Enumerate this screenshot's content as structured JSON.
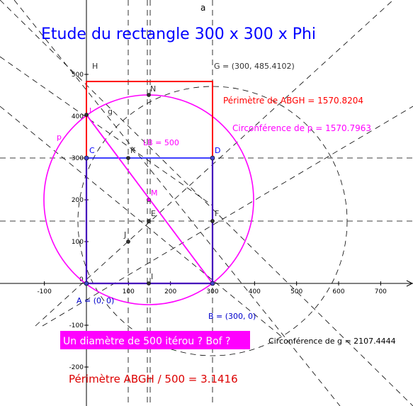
{
  "title": "Etude du rectangle 300 x 300 x Phi",
  "line_label_a": "a",
  "axes": {
    "x_ticks": [
      -100,
      100,
      200,
      300,
      400,
      500,
      600,
      700
    ],
    "y_ticks": [
      500,
      400,
      300,
      200,
      100,
      -100,
      -200
    ],
    "origin_label": "0"
  },
  "points": {
    "A": "A = (0, 0)",
    "B": "B = (300, 0)",
    "G": "G = (300, 485.4102)",
    "H": "H",
    "N": "N",
    "I_upper": "I",
    "g": "g",
    "p": "p",
    "C": "C",
    "K": "K",
    "D": "D",
    "M": "M",
    "E": "E",
    "F": "F",
    "J": "J",
    "I_lower": "I"
  },
  "labels": {
    "perimetre": "Périmètre de  ABGH = 1570.8204",
    "circ_p": "Circonférence de p = 1570.7963",
    "lb": "LB = 500",
    "circ_g": "Circonférence de g = 2107.4444",
    "banner": "Un diamètre de 500 itérou ? Bof ?",
    "ratio": "Périmètre ABGH / 500 = 3.1416"
  },
  "colors": {
    "title": "#0000ff",
    "rectangle": "#ff0000",
    "circle_p": "#ff00ff",
    "square": "#4400bb",
    "axis": "#000000",
    "dashed": "#000000",
    "banner_bg": "#ff00ff",
    "banner_text": "#ffffff",
    "ratio_text": "#dd0000",
    "point_B_label": "#0000cc"
  }
}
